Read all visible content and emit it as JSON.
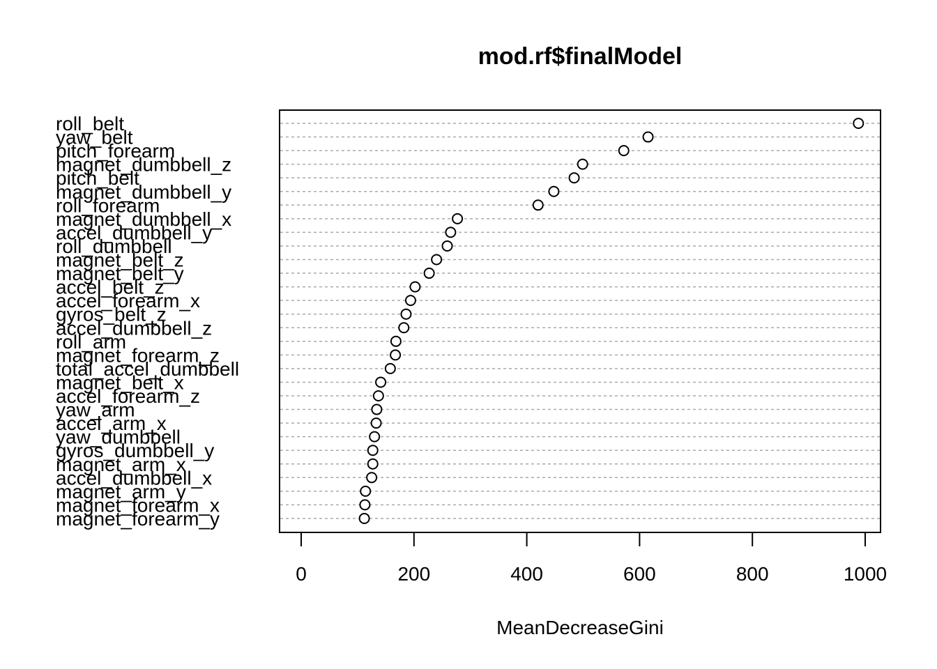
{
  "chart_data": {
    "type": "scatter",
    "title": "mod.rf$finalModel",
    "xlabel": "MeanDecreaseGini",
    "ylabel": "",
    "xlim": [
      -40,
      1030
    ],
    "xticks": [
      0,
      200,
      400,
      600,
      800,
      1000
    ],
    "grid": "horizontal dotted",
    "categories": [
      "roll_belt",
      "yaw_belt",
      "pitch_forearm",
      "magnet_dumbbell_z",
      "pitch_belt",
      "magnet_dumbbell_y",
      "roll_forearm",
      "magnet_dumbbell_x",
      "accel_dumbbell_y",
      "roll_dumbbell",
      "magnet_belt_z",
      "magnet_belt_y",
      "accel_belt_z",
      "accel_forearm_x",
      "gyros_belt_z",
      "accel_dumbbell_z",
      "roll_arm",
      "magnet_forearm_z",
      "total_accel_dumbbell",
      "magnet_belt_x",
      "accel_forearm_z",
      "yaw_arm",
      "accel_arm_x",
      "yaw_dumbbell",
      "gyros_dumbbell_y",
      "magnet_arm_x",
      "accel_dumbbell_x",
      "magnet_arm_y",
      "magnet_forearm_x",
      "magnet_forearm_y"
    ],
    "values": [
      988,
      615,
      572,
      499,
      484,
      448,
      420,
      277,
      265,
      259,
      240,
      227,
      202,
      194,
      186,
      182,
      168,
      167,
      158,
      141,
      137,
      134,
      133,
      130,
      127,
      127,
      125,
      114,
      113,
      112
    ]
  }
}
